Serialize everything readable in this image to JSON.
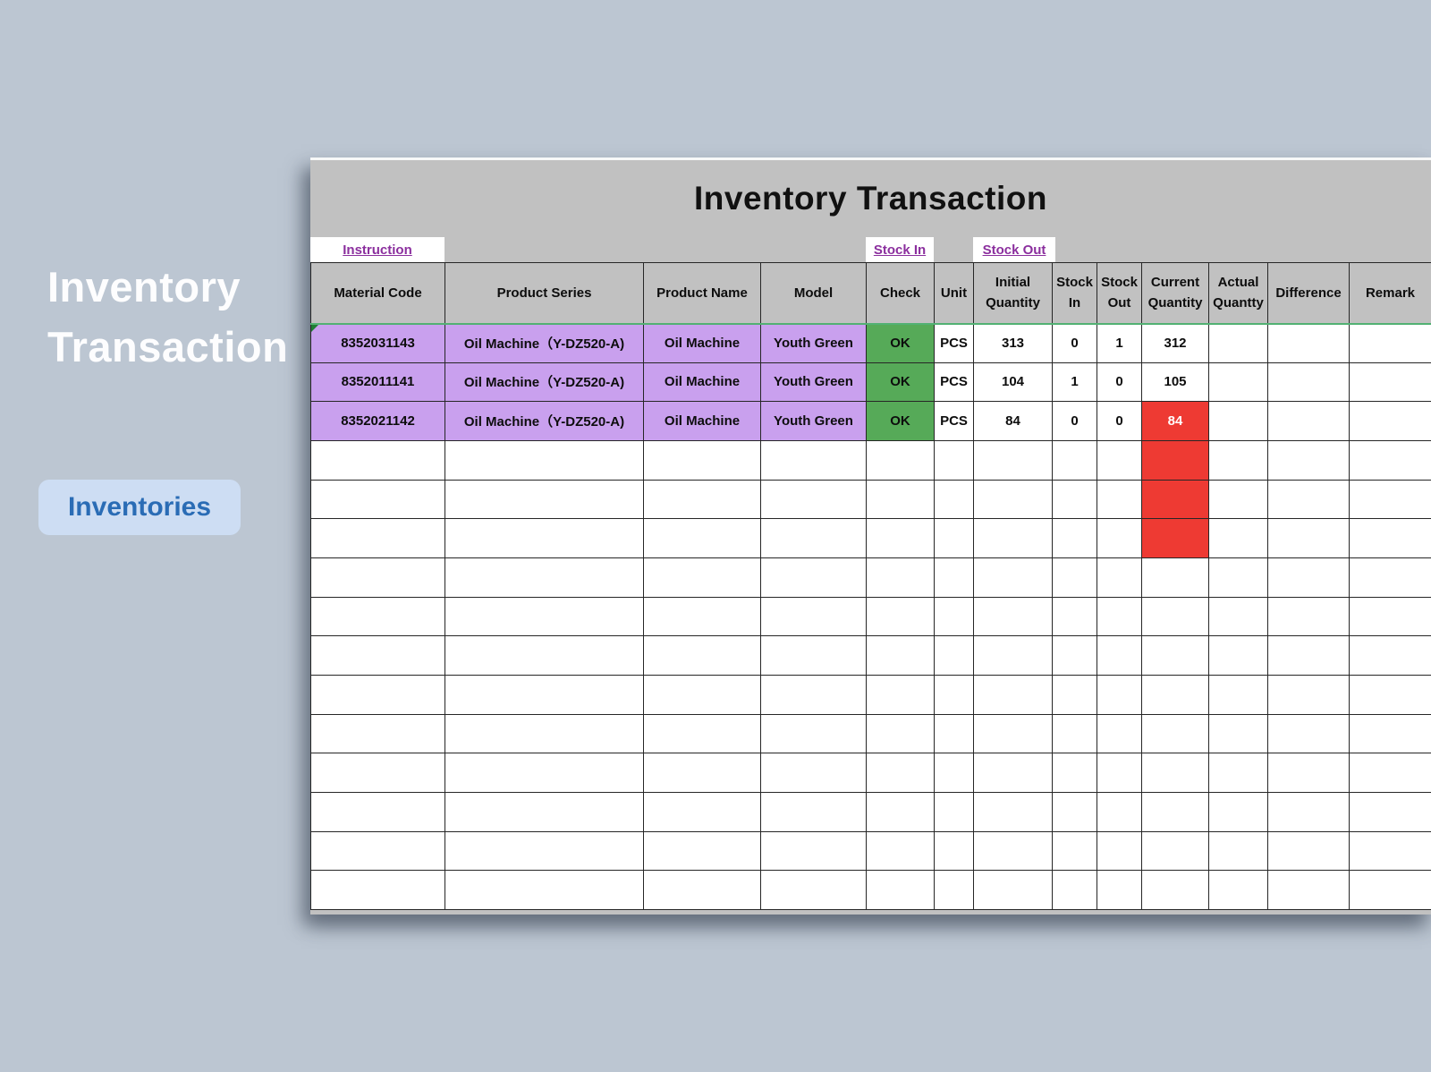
{
  "page": {
    "background": "#bcc6d2"
  },
  "left_panel": {
    "title": "Inventory Transaction",
    "button_label": "Inventories"
  },
  "sheet": {
    "title": "Inventory Transaction",
    "links": {
      "instruction": "Instruction",
      "stock_in": "Stock In",
      "stock_out": "Stock Out"
    },
    "columns": [
      {
        "key": "material_code",
        "label": "Material Code"
      },
      {
        "key": "product_series",
        "label": "Product Series"
      },
      {
        "key": "product_name",
        "label": "Product Name"
      },
      {
        "key": "model",
        "label": "Model"
      },
      {
        "key": "check",
        "label": "Check"
      },
      {
        "key": "unit",
        "label": "Unit"
      },
      {
        "key": "initial_quantity",
        "label": "Initial Quantity"
      },
      {
        "key": "stock_in",
        "label": "Stock In"
      },
      {
        "key": "stock_out",
        "label": "Stock Out"
      },
      {
        "key": "current_quantity",
        "label": "Current Quantity"
      },
      {
        "key": "actual_quantity",
        "label": "Actual Quantty"
      },
      {
        "key": "difference",
        "label": "Difference"
      },
      {
        "key": "remark",
        "label": "Remark"
      }
    ],
    "rows": [
      {
        "material_code": "8352031143",
        "product_series": "Oil Machine（Y-DZ520-A)",
        "product_name": "Oil Machine",
        "model": "Youth Green",
        "check": "OK",
        "unit": "PCS",
        "initial_quantity": "313",
        "stock_in": "0",
        "stock_out": "1",
        "current_quantity": "312",
        "actual_quantity": "",
        "difference": "",
        "remark": ""
      },
      {
        "material_code": "8352011141",
        "product_series": "Oil Machine（Y-DZ520-A)",
        "product_name": "Oil Machine",
        "model": "Youth Green",
        "check": "OK",
        "unit": "PCS",
        "initial_quantity": "104",
        "stock_in": "1",
        "stock_out": "0",
        "current_quantity": "105",
        "actual_quantity": "",
        "difference": "",
        "remark": ""
      },
      {
        "material_code": "8352021142",
        "product_series": "Oil Machine（Y-DZ520-A)",
        "product_name": "Oil Machine",
        "model": "Youth Green",
        "check": "OK",
        "unit": "PCS",
        "initial_quantity": "84",
        "stock_in": "0",
        "stock_out": "0",
        "current_quantity": "84",
        "actual_quantity": "",
        "difference": "",
        "remark": ""
      }
    ],
    "empty_row_count": 12,
    "red_block": {
      "column": "current_quantity",
      "row_indexes": [
        2,
        3,
        4,
        5
      ]
    },
    "colors": {
      "purple": "#c9a0ee",
      "green": "#56aa58",
      "red": "#ee3a33",
      "link": "#8b2f9e",
      "header_underline": "#52b173"
    }
  }
}
